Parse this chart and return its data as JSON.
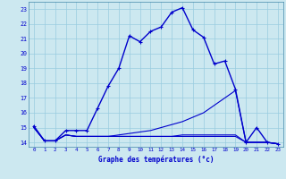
{
  "xlabel": "Graphe des températures (°c)",
  "xlim": [
    -0.5,
    23.5
  ],
  "ylim": [
    13.7,
    23.5
  ],
  "yticks": [
    14,
    15,
    16,
    17,
    18,
    19,
    20,
    21,
    22,
    23
  ],
  "xticks": [
    0,
    1,
    2,
    3,
    4,
    5,
    6,
    7,
    8,
    9,
    10,
    11,
    12,
    13,
    14,
    15,
    16,
    17,
    18,
    19,
    20,
    21,
    22,
    23
  ],
  "bg_color": "#cce8f0",
  "grid_color": "#99cce0",
  "line_color": "#0000cc",
  "lines": [
    {
      "x": [
        0,
        1,
        2,
        3,
        4,
        5,
        6,
        7,
        8,
        9,
        10,
        11,
        12,
        13,
        14,
        15,
        16,
        17,
        18,
        19,
        20,
        21,
        22,
        23
      ],
      "y": [
        15.1,
        14.1,
        14.1,
        14.8,
        14.8,
        14.8,
        16.3,
        17.8,
        19.0,
        21.2,
        20.8,
        21.5,
        21.8,
        22.8,
        23.1,
        21.6,
        21.1,
        19.3,
        19.5,
        17.6,
        14.0,
        15.0,
        14.0,
        13.9
      ],
      "marker": true,
      "lw": 1.0
    },
    {
      "x": [
        0,
        1,
        2,
        3,
        4,
        5,
        6,
        7,
        8,
        9,
        10,
        11,
        12,
        13,
        14,
        15,
        16,
        17,
        18,
        19,
        20,
        21,
        22,
        23
      ],
      "y": [
        15.0,
        14.1,
        14.1,
        14.5,
        14.4,
        14.4,
        14.4,
        14.4,
        14.5,
        14.6,
        14.7,
        14.8,
        15.0,
        15.2,
        15.4,
        15.7,
        16.0,
        16.5,
        17.0,
        17.5,
        14.0,
        14.0,
        14.0,
        13.9
      ],
      "marker": false,
      "lw": 0.8
    },
    {
      "x": [
        0,
        1,
        2,
        3,
        4,
        5,
        6,
        7,
        8,
        9,
        10,
        11,
        12,
        13,
        14,
        15,
        16,
        17,
        18,
        19,
        20,
        21,
        22,
        23
      ],
      "y": [
        15.0,
        14.1,
        14.1,
        14.5,
        14.4,
        14.4,
        14.4,
        14.4,
        14.4,
        14.4,
        14.4,
        14.4,
        14.4,
        14.4,
        14.5,
        14.5,
        14.5,
        14.5,
        14.5,
        14.5,
        14.0,
        14.0,
        14.0,
        13.9
      ],
      "marker": false,
      "lw": 0.8
    },
    {
      "x": [
        0,
        1,
        2,
        3,
        4,
        5,
        6,
        7,
        8,
        9,
        10,
        11,
        12,
        13,
        14,
        15,
        16,
        17,
        18,
        19,
        20,
        21,
        22,
        23
      ],
      "y": [
        15.0,
        14.1,
        14.1,
        14.5,
        14.4,
        14.4,
        14.4,
        14.4,
        14.4,
        14.4,
        14.4,
        14.4,
        14.4,
        14.4,
        14.4,
        14.4,
        14.4,
        14.4,
        14.4,
        14.4,
        14.0,
        14.0,
        14.0,
        13.9
      ],
      "marker": false,
      "lw": 0.8
    }
  ]
}
